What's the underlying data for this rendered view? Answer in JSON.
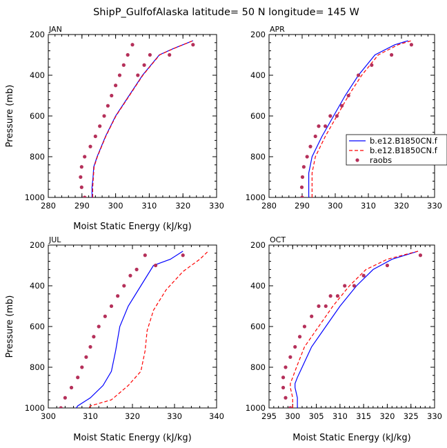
{
  "figure": {
    "title": "ShipP_GulfofAlaska  latitude= 50 N longitude= 145 W"
  },
  "legend": {
    "entries": [
      {
        "label": "b.e12.B1850CN.f",
        "style": "solid",
        "color": "#0000ff"
      },
      {
        "label": "b.e12.B1850CN.f",
        "style": "dashed",
        "color": "#ff0000"
      },
      {
        "label": "raobs",
        "style": "dot",
        "color": "#b5305a"
      }
    ]
  },
  "chart_data": [
    {
      "type": "line",
      "title": "JAN",
      "xlabel": "Moist Static Energy (kJ/kg)",
      "ylabel": "Pressure (mb)",
      "xlim": [
        280,
        330
      ],
      "ylim": [
        1000,
        200
      ],
      "xticks": [
        280,
        290,
        300,
        310,
        320,
        330
      ],
      "yticks": [
        200,
        400,
        600,
        800,
        1000
      ],
      "series": [
        {
          "color": "#0000ff",
          "style": "solid",
          "x": [
            293.0,
            293.0,
            293.3,
            293.5,
            294.5,
            297.0,
            300.0,
            304.0,
            308.0,
            313.0,
            317.0,
            323.0
          ],
          "y": [
            1000,
            950,
            900,
            850,
            800,
            700,
            600,
            500,
            400,
            300,
            270,
            230
          ]
        },
        {
          "color": "#ff0000",
          "style": "dashed",
          "x": [
            293.2,
            293.2,
            293.4,
            293.6,
            294.6,
            297.1,
            300.1,
            304.1,
            308.1,
            313.1,
            317.1,
            323.0
          ],
          "y": [
            1000,
            950,
            900,
            850,
            800,
            700,
            600,
            500,
            400,
            300,
            270,
            230
          ]
        },
        {
          "color": "#b5305a",
          "style": "dot",
          "x": [
            290.8,
            289.9,
            289.6,
            289.9,
            290.8,
            292.5,
            294.0,
            295.3,
            296.6,
            297.7,
            298.8,
            300.0,
            301.2,
            302.4,
            303.6,
            305.0,
            306.6,
            308.5,
            310.2,
            316.0,
            323.0
          ],
          "y": [
            1000,
            950,
            900,
            850,
            800,
            750,
            700,
            650,
            600,
            550,
            500,
            450,
            400,
            350,
            300,
            250,
            400,
            350,
            300,
            300,
            250
          ]
        }
      ]
    },
    {
      "type": "line",
      "title": "APR",
      "xlabel": "",
      "ylabel": "",
      "xlim": [
        280,
        330
      ],
      "ylim": [
        1000,
        200
      ],
      "xticks": [
        280,
        290,
        300,
        310,
        320,
        330
      ],
      "yticks": [
        200,
        400,
        600,
        800,
        1000
      ],
      "series": [
        {
          "color": "#0000ff",
          "style": "solid",
          "x": [
            292.0,
            292.0,
            292.0,
            293.0,
            296.0,
            299.5,
            303.0,
            307.0,
            312.0,
            318.0,
            322.0
          ],
          "y": [
            1000,
            950,
            880,
            800,
            700,
            600,
            500,
            400,
            300,
            250,
            230
          ]
        },
        {
          "color": "#ff0000",
          "style": "dashed",
          "x": [
            293.0,
            293.0,
            293.0,
            294.0,
            297.0,
            300.5,
            304.0,
            308.0,
            313.0,
            319.0,
            323.0
          ],
          "y": [
            1000,
            950,
            880,
            800,
            700,
            600,
            500,
            400,
            300,
            250,
            230
          ]
        },
        {
          "color": "#b5305a",
          "style": "dot",
          "x": [
            290.0,
            289.9,
            290.1,
            290.5,
            291.5,
            292.5,
            294.0,
            295.0,
            297.0,
            298.5,
            300.5,
            302.0,
            304.0,
            307.0,
            311.0,
            317.0,
            323.0
          ],
          "y": [
            1000,
            950,
            900,
            850,
            800,
            750,
            700,
            650,
            650,
            600,
            600,
            550,
            500,
            400,
            350,
            300,
            250
          ]
        }
      ]
    },
    {
      "type": "line",
      "title": "JUL",
      "xlabel": "Moist Static Energy (kJ/kg)",
      "ylabel": "Pressure (mb)",
      "xlim": [
        300,
        340
      ],
      "ylim": [
        1000,
        200
      ],
      "xticks": [
        300,
        310,
        320,
        330,
        340
      ],
      "yticks": [
        200,
        400,
        600,
        800,
        1000
      ],
      "series": [
        {
          "color": "#0000ff",
          "style": "solid",
          "x": [
            306.0,
            307.0,
            310.0,
            313.0,
            315.0,
            316.0,
            317.0,
            319.0,
            322.0,
            325.0,
            329.0,
            332.0
          ],
          "y": [
            1020,
            990,
            950,
            890,
            820,
            720,
            600,
            500,
            400,
            300,
            270,
            230
          ]
        },
        {
          "color": "#ff0000",
          "style": "dashed",
          "x": [
            309.0,
            310.0,
            315.0,
            319.0,
            322.0,
            323.0,
            323.5,
            325.0,
            328.0,
            332.0,
            336.0,
            338.0
          ],
          "y": [
            1020,
            990,
            960,
            890,
            820,
            720,
            620,
            520,
            420,
            330,
            270,
            230
          ]
        },
        {
          "color": "#b5305a",
          "style": "dot",
          "x": [
            303.0,
            304.0,
            305.5,
            307.0,
            308.0,
            309.0,
            310.0,
            310.8,
            312.0,
            313.5,
            315.0,
            316.5,
            318.0,
            319.5,
            321.0,
            323.0,
            325.5,
            332.0
          ],
          "y": [
            1000,
            950,
            900,
            850,
            800,
            750,
            700,
            650,
            600,
            550,
            500,
            450,
            400,
            350,
            320,
            250,
            300,
            250
          ]
        }
      ]
    },
    {
      "type": "line",
      "title": "OCT",
      "xlabel": "Moist Static Energy (kJ/kg)",
      "ylabel": "",
      "xlim": [
        295,
        330
      ],
      "ylim": [
        1000,
        200
      ],
      "xticks": [
        295,
        300,
        305,
        310,
        315,
        320,
        325,
        330
      ],
      "yticks": [
        200,
        400,
        600,
        800,
        1000
      ],
      "series": [
        {
          "color": "#0000ff",
          "style": "solid",
          "x": [
            301.0,
            301.0,
            300.5,
            300.5,
            301.0,
            302.0,
            304.0,
            307.0,
            310.0,
            313.5,
            317.0,
            321.0,
            326.5
          ],
          "y": [
            1000,
            950,
            900,
            880,
            850,
            800,
            700,
            600,
            500,
            400,
            320,
            270,
            230
          ]
        },
        {
          "color": "#ff0000",
          "style": "dashed",
          "x": [
            300.0,
            300.0,
            299.5,
            299.5,
            300.0,
            300.8,
            302.5,
            305.5,
            308.5,
            312.0,
            315.5,
            320.0,
            326.5
          ],
          "y": [
            1000,
            950,
            900,
            880,
            850,
            800,
            700,
            600,
            500,
            400,
            320,
            270,
            230
          ]
        },
        {
          "color": "#b5305a",
          "style": "dot",
          "x": [
            299.5,
            298.5,
            298.0,
            298.0,
            298.5,
            299.5,
            300.5,
            301.5,
            302.5,
            304.0,
            305.5,
            307.0,
            308.0,
            309.5,
            311.0,
            313.0,
            315.0,
            320.0,
            327.0
          ],
          "y": [
            1000,
            950,
            900,
            850,
            800,
            750,
            700,
            650,
            600,
            550,
            500,
            500,
            450,
            450,
            400,
            400,
            350,
            300,
            250
          ]
        }
      ]
    }
  ]
}
